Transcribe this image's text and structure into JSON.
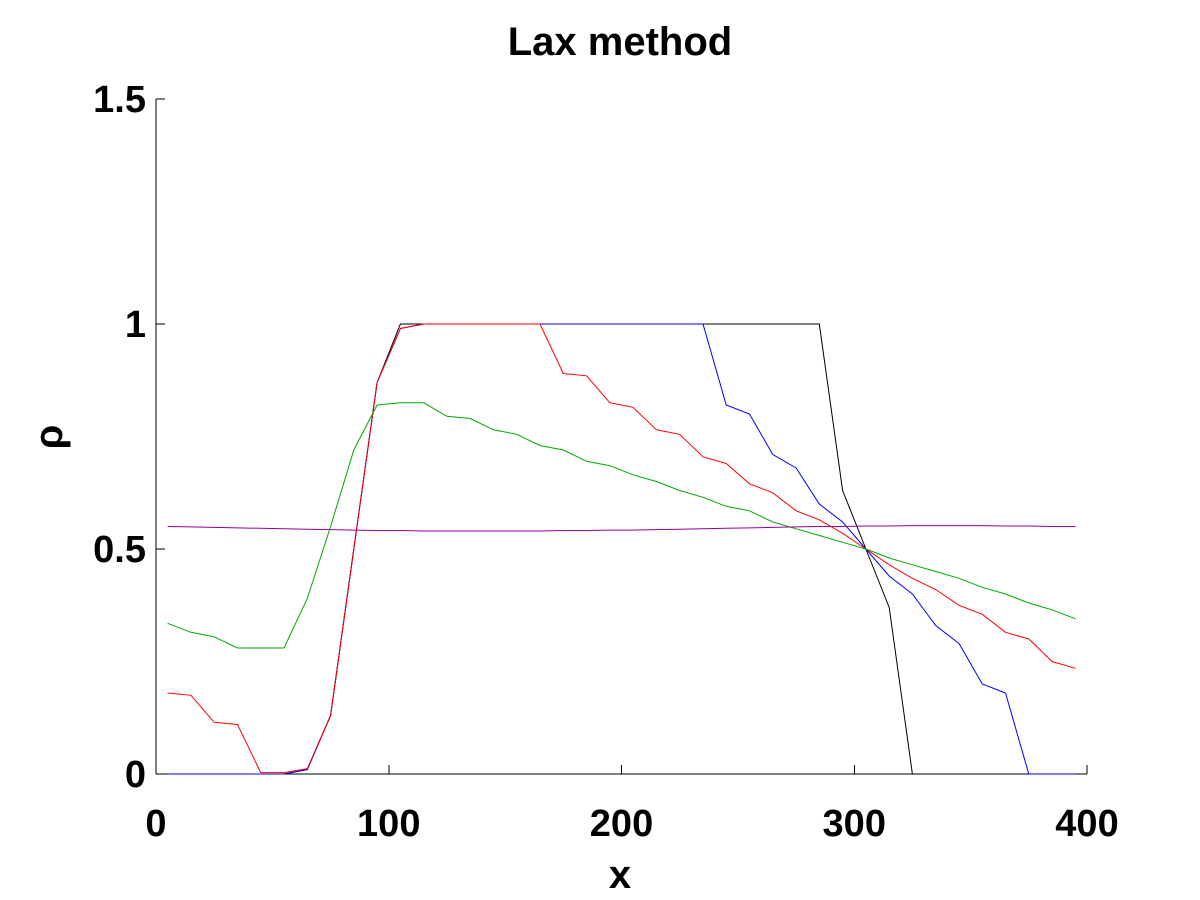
{
  "chart_data": {
    "type": "line",
    "title": "Lax method",
    "xlabel": "x",
    "ylabel": "ρ",
    "xlim": [
      0,
      400
    ],
    "ylim": [
      0,
      1.5
    ],
    "x_ticks": [
      0,
      100,
      200,
      300,
      400
    ],
    "x_tick_labels": [
      "0",
      "100",
      "200",
      "300",
      "400"
    ],
    "y_ticks": [
      0,
      0.5,
      1,
      1.5
    ],
    "y_tick_labels": [
      "0",
      "0.5",
      "1",
      "1.5"
    ],
    "grid": false,
    "legend": "none",
    "x": [
      5,
      15,
      25,
      35,
      45,
      55,
      65,
      75,
      85,
      95,
      105,
      115,
      125,
      135,
      145,
      155,
      165,
      175,
      185,
      195,
      205,
      215,
      225,
      235,
      245,
      255,
      265,
      275,
      285,
      295,
      305,
      315,
      325,
      335,
      345,
      355,
      365,
      375,
      385,
      395
    ],
    "series": [
      {
        "color": "#000000",
        "values": [
          0,
          0,
          0,
          0,
          0,
          0,
          0.01,
          0.13,
          0.5,
          0.87,
          1,
          1,
          1,
          1,
          1,
          1,
          1,
          1,
          1,
          1,
          1,
          1,
          1,
          1,
          1,
          1,
          1,
          1,
          1,
          0.63,
          0.5,
          0.37,
          0,
          0,
          0,
          0,
          0,
          0,
          0,
          0
        ]
      },
      {
        "color": "#0000ff",
        "values": [
          0,
          0,
          0,
          0,
          0,
          0,
          0.01,
          0.13,
          0.5,
          0.87,
          0.99,
          1,
          1,
          1,
          1,
          1,
          1,
          1,
          1,
          1,
          1,
          1,
          1,
          1,
          0.82,
          0.8,
          0.71,
          0.68,
          0.6,
          0.56,
          0.5,
          0.44,
          0.4,
          0.33,
          0.29,
          0.2,
          0.18,
          0,
          0,
          0
        ]
      },
      {
        "color": "#ff0000",
        "values": [
          0.18,
          0.175,
          0.115,
          0.11,
          0.003,
          0.003,
          0.012,
          0.13,
          0.5,
          0.87,
          0.99,
          1,
          1,
          1,
          1,
          1,
          1,
          0.89,
          0.885,
          0.825,
          0.815,
          0.765,
          0.755,
          0.705,
          0.69,
          0.645,
          0.625,
          0.585,
          0.565,
          0.535,
          0.5,
          0.465,
          0.435,
          0.41,
          0.375,
          0.355,
          0.315,
          0.3,
          0.25,
          0.235
        ]
      },
      {
        "color": "#00aa00",
        "values": [
          0.335,
          0.315,
          0.305,
          0.28,
          0.28,
          0.28,
          0.39,
          0.55,
          0.72,
          0.82,
          0.825,
          0.825,
          0.795,
          0.79,
          0.765,
          0.755,
          0.73,
          0.72,
          0.695,
          0.685,
          0.665,
          0.65,
          0.63,
          0.615,
          0.595,
          0.585,
          0.56,
          0.545,
          0.53,
          0.515,
          0.5,
          0.48,
          0.465,
          0.45,
          0.435,
          0.415,
          0.4,
          0.38,
          0.365,
          0.345
        ]
      },
      {
        "color": "#990099",
        "values": [
          0.55,
          0.549,
          0.548,
          0.547,
          0.546,
          0.545,
          0.544,
          0.543,
          0.542,
          0.541,
          0.541,
          0.54,
          0.54,
          0.54,
          0.54,
          0.54,
          0.54,
          0.541,
          0.541,
          0.542,
          0.542,
          0.543,
          0.544,
          0.545,
          0.546,
          0.547,
          0.548,
          0.549,
          0.55,
          0.55,
          0.551,
          0.551,
          0.552,
          0.552,
          0.552,
          0.552,
          0.551,
          0.551,
          0.55,
          0.55
        ]
      }
    ]
  }
}
